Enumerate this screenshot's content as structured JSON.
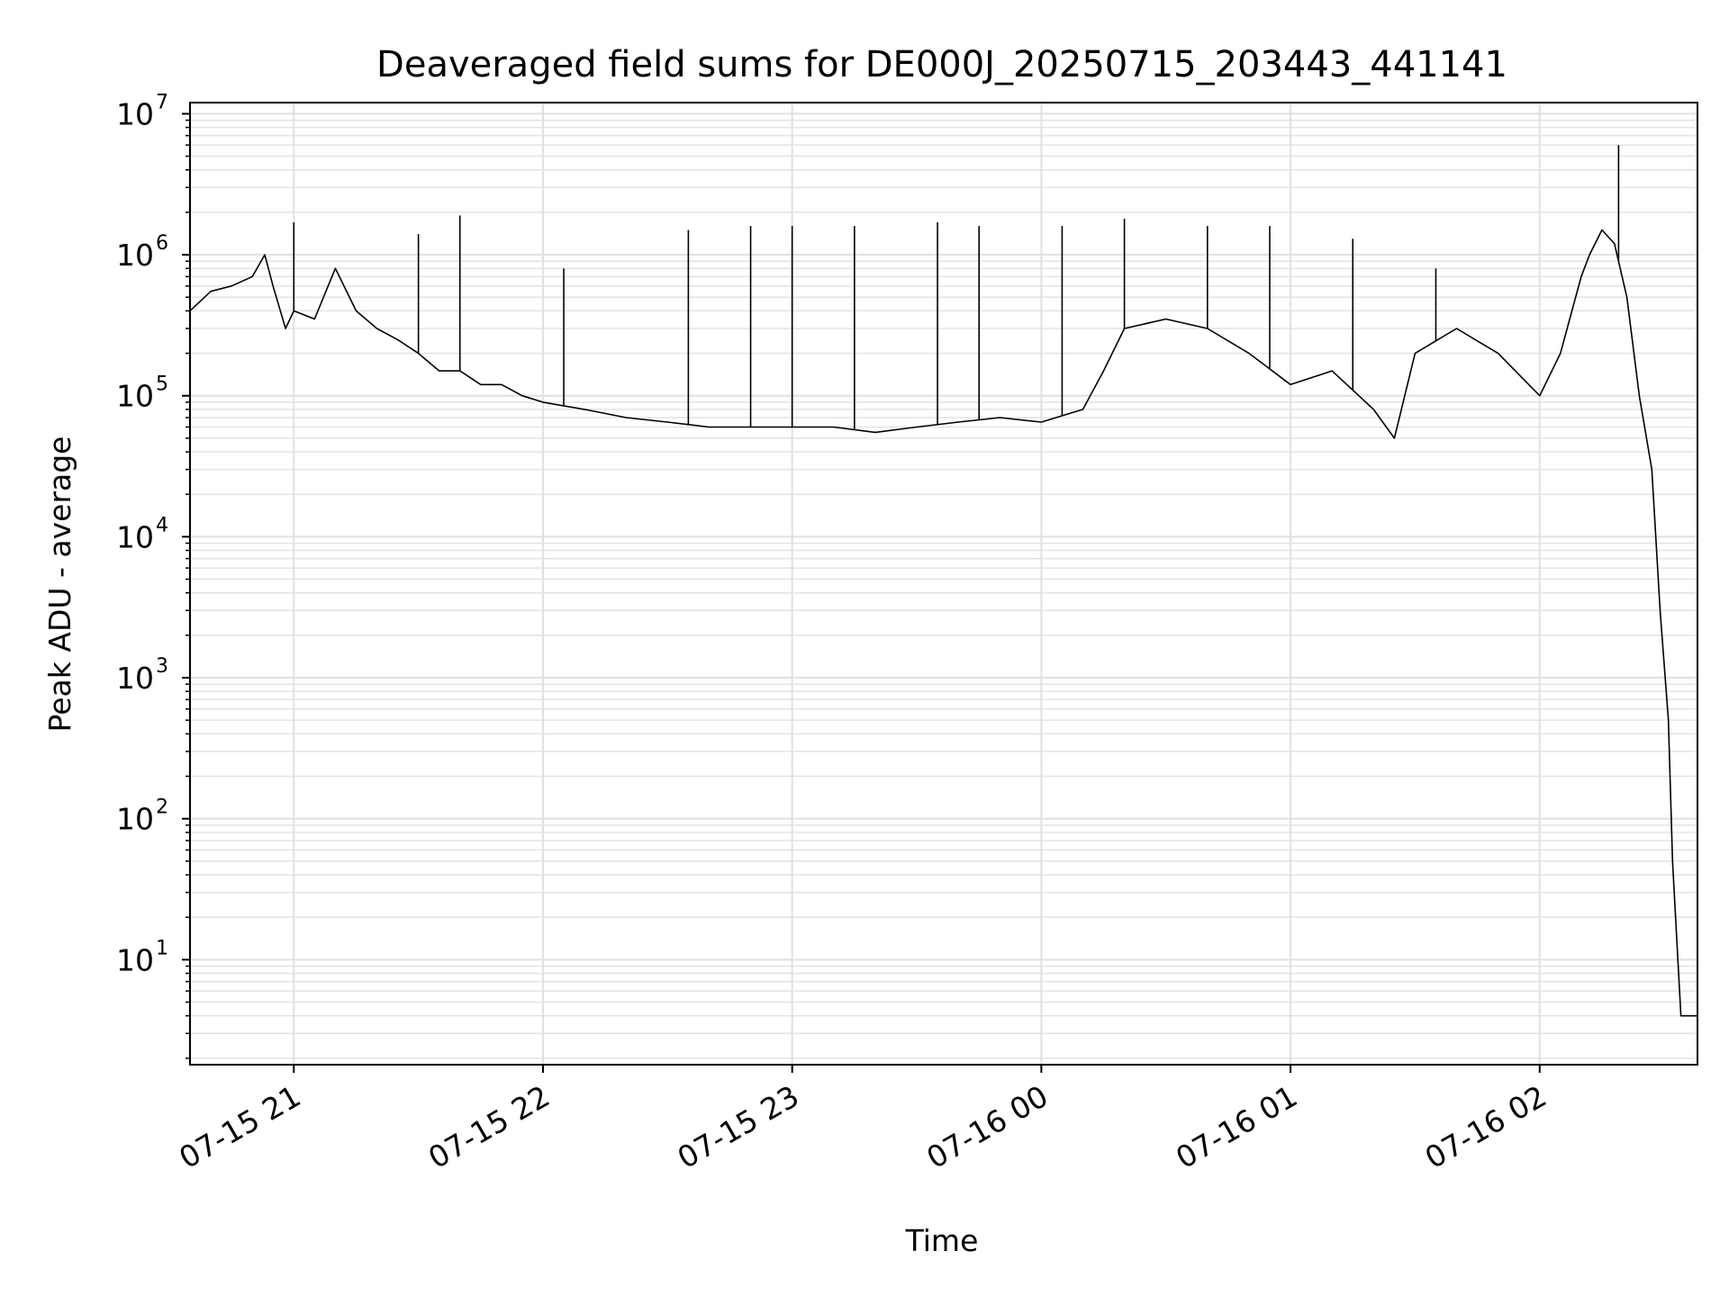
{
  "chart_data": {
    "type": "line",
    "title": "Deaveraged field sums for DE000J_20250715_203443_441141",
    "xlabel": "Time",
    "ylabel": "Peak ADU - average",
    "yscale": "log",
    "ylim": [
      1.8,
      12000000
    ],
    "xlim": [
      "2025-07-15 20:35",
      "2025-07-16 02:38"
    ],
    "grid": true,
    "x_ticks": [
      {
        "value": "2025-07-15 21:00",
        "label": "07-15 21"
      },
      {
        "value": "2025-07-15 22:00",
        "label": "07-15 22"
      },
      {
        "value": "2025-07-15 23:00",
        "label": "07-15 23"
      },
      {
        "value": "2025-07-16 00:00",
        "label": "07-16 00"
      },
      {
        "value": "2025-07-16 01:00",
        "label": "07-16 01"
      },
      {
        "value": "2025-07-16 02:00",
        "label": "07-16 02"
      }
    ],
    "y_ticks": [
      {
        "value": 10,
        "base": "10",
        "exp": "1"
      },
      {
        "value": 100,
        "base": "10",
        "exp": "2"
      },
      {
        "value": 1000,
        "base": "10",
        "exp": "3"
      },
      {
        "value": 10000,
        "base": "10",
        "exp": "4"
      },
      {
        "value": 100000,
        "base": "10",
        "exp": "5"
      },
      {
        "value": 1000000,
        "base": "10",
        "exp": "6"
      },
      {
        "value": 10000000,
        "base": "10",
        "exp": "7"
      }
    ],
    "line_color": "#000000",
    "series": [
      {
        "x": [
          "2025-07-15 20:35",
          "2025-07-15 20:40",
          "2025-07-15 20:45",
          "2025-07-15 20:50",
          "2025-07-15 20:53",
          "2025-07-15 20:55",
          "2025-07-15 20:58",
          "2025-07-15 21:00",
          "2025-07-15 21:05",
          "2025-07-15 21:10",
          "2025-07-15 21:15",
          "2025-07-15 21:20",
          "2025-07-15 21:25",
          "2025-07-15 21:30",
          "2025-07-15 21:35",
          "2025-07-15 21:40",
          "2025-07-15 21:45",
          "2025-07-15 21:50",
          "2025-07-15 21:55",
          "2025-07-15 22:00",
          "2025-07-15 22:10",
          "2025-07-15 22:20",
          "2025-07-15 22:30",
          "2025-07-15 22:40",
          "2025-07-15 22:50",
          "2025-07-15 23:00",
          "2025-07-15 23:10",
          "2025-07-15 23:20",
          "2025-07-15 23:30",
          "2025-07-15 23:40",
          "2025-07-15 23:50",
          "2025-07-16 00:00",
          "2025-07-16 00:10",
          "2025-07-16 00:15",
          "2025-07-16 00:20",
          "2025-07-16 00:30",
          "2025-07-16 00:40",
          "2025-07-16 00:50",
          "2025-07-16 01:00",
          "2025-07-16 01:10",
          "2025-07-16 01:20",
          "2025-07-16 01:25",
          "2025-07-16 01:30",
          "2025-07-16 01:40",
          "2025-07-16 01:50",
          "2025-07-16 02:00",
          "2025-07-16 02:05",
          "2025-07-16 02:10",
          "2025-07-16 02:12",
          "2025-07-16 02:15",
          "2025-07-16 02:18",
          "2025-07-16 02:21",
          "2025-07-16 02:24",
          "2025-07-16 02:27",
          "2025-07-16 02:29",
          "2025-07-16 02:31",
          "2025-07-16 02:32",
          "2025-07-16 02:34",
          "2025-07-16 02:38"
        ],
        "y": [
          400000,
          550000,
          600000,
          700000,
          1000000,
          600000,
          300000,
          400000,
          350000,
          800000,
          400000,
          300000,
          250000,
          200000,
          150000,
          150000,
          120000,
          120000,
          100000,
          90000,
          80000,
          70000,
          65000,
          60000,
          60000,
          60000,
          60000,
          55000,
          60000,
          65000,
          70000,
          65000,
          80000,
          150000,
          300000,
          350000,
          300000,
          200000,
          120000,
          150000,
          80000,
          50000,
          200000,
          300000,
          200000,
          100000,
          200000,
          700000,
          1000000,
          1500000,
          1200000,
          500000,
          100000,
          30000,
          3000,
          500,
          50,
          4,
          4
        ],
        "spikes": [
          {
            "x": "2025-07-15 21:00",
            "y": 1700000
          },
          {
            "x": "2025-07-15 21:30",
            "y": 1400000
          },
          {
            "x": "2025-07-15 21:40",
            "y": 1900000
          },
          {
            "x": "2025-07-15 22:05",
            "y": 800000
          },
          {
            "x": "2025-07-15 22:35",
            "y": 1500000
          },
          {
            "x": "2025-07-15 22:50",
            "y": 1600000
          },
          {
            "x": "2025-07-15 23:00",
            "y": 1600000
          },
          {
            "x": "2025-07-15 23:15",
            "y": 1600000
          },
          {
            "x": "2025-07-15 23:35",
            "y": 1700000
          },
          {
            "x": "2025-07-15 23:45",
            "y": 1600000
          },
          {
            "x": "2025-07-16 00:05",
            "y": 1600000
          },
          {
            "x": "2025-07-16 00:20",
            "y": 1800000
          },
          {
            "x": "2025-07-16 00:40",
            "y": 1600000
          },
          {
            "x": "2025-07-16 00:55",
            "y": 1600000
          },
          {
            "x": "2025-07-16 01:15",
            "y": 1300000
          },
          {
            "x": "2025-07-16 01:35",
            "y": 800000
          },
          {
            "x": "2025-07-16 02:19",
            "y": 6000000
          }
        ]
      }
    ]
  }
}
